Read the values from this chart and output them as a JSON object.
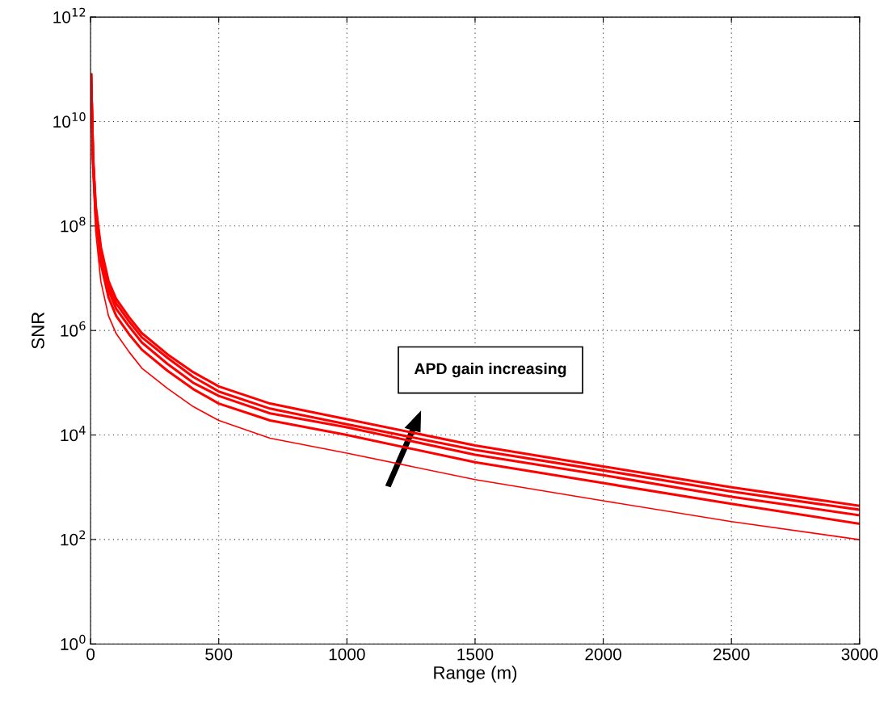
{
  "chart_data": {
    "type": "line",
    "xlabel": "Range (m)",
    "ylabel": "SNR",
    "log": "y",
    "grid": true,
    "legend": false,
    "marker": "none",
    "line_style": "solid",
    "x": [
      2,
      10,
      20,
      40,
      70,
      100,
      150,
      200,
      300,
      400,
      500,
      700,
      1000,
      1500,
      2000,
      2500,
      3000
    ],
    "xlim": [
      0,
      3000
    ],
    "xticks": [
      0,
      500,
      1000,
      1500,
      2000,
      2500,
      3000
    ],
    "ylim": [
      1,
      1000000000000.0
    ],
    "yticks": [
      {
        "value": 1,
        "label": "10$^{0}$"
      },
      {
        "value": 100,
        "label": "10$^{2}$"
      },
      {
        "value": 10000,
        "label": "10$^{4}$"
      },
      {
        "value": 1000000,
        "label": "10$^{6}$"
      },
      {
        "value": 100000000,
        "label": "10$^{8}$"
      },
      {
        "value": 10000000000,
        "label": "10$^{10}$"
      },
      {
        "value": 1000000000000,
        "label": "10$^{12}$"
      }
    ],
    "series": [
      {
        "color": "#ff0000",
        "values": [
          79000000000.0,
          2000000000.0,
          250000000.0,
          40000000.0,
          8900000.0,
          4000000.0,
          1800000.0,
          890000.0,
          350000.0,
          160000.0,
          85000.0,
          40000.0,
          20000.0,
          6300.0,
          2500.0,
          1000.0,
          440
        ]
      },
      {
        "color": "#ff0000",
        "values": [
          79000000000.0,
          1800000000.0,
          220000000.0,
          33000000.0,
          7400000.0,
          3300000.0,
          1500000.0,
          740000.0,
          300000.0,
          130000.0,
          68000.0,
          32000.0,
          16000.0,
          5200.0,
          2100.0,
          830,
          370
        ]
      },
      {
        "color": "#ff0000",
        "values": [
          79000000000.0,
          1700000000.0,
          190000000.0,
          26000000.0,
          5900000.0,
          2600000.0,
          1200000.0,
          590000.0,
          230000.0,
          100000.0,
          56000.0,
          26000.0,
          14000.0,
          4200.0,
          1700.0,
          660,
          290
        ]
      },
      {
        "color": "#ff0000",
        "values": [
          79000000000.0,
          1400000000.0,
          140000000.0,
          19000000.0,
          4300000.0,
          1900000.0,
          850000.0,
          430000.0,
          170000.0,
          76000.0,
          40000.0,
          19000.0,
          10000.0,
          3000.0,
          1200.0,
          480,
          200
        ]
      },
      {
        "color": "#ff0000",
        "values": [
          79000000000.0,
          1000000000.0,
          79000000.0,
          8700000.0,
          1900000.0,
          870000.0,
          390000.0,
          190000.0,
          78000.0,
          35000.0,
          19000.0,
          8700.0,
          4500.0,
          1400.0,
          550,
          220,
          99
        ]
      }
    ],
    "annotations": [
      "APD gain increasing"
    ]
  }
}
